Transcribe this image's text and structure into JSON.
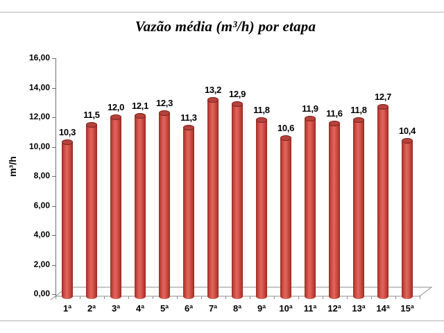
{
  "chart_data": {
    "type": "bar",
    "style": "3d-cylinder",
    "title": "Vazão média (m³/h) por etapa",
    "xlabel": "",
    "ylabel": "m³/h",
    "categories": [
      "1ª",
      "2ª",
      "3ª",
      "4ª",
      "5ª",
      "6ª",
      "7ª",
      "8ª",
      "9ª",
      "10ª",
      "11ª",
      "12ª",
      "13ª",
      "14ª",
      "15ª"
    ],
    "values": [
      10.3,
      11.5,
      12.0,
      12.1,
      12.3,
      11.3,
      13.2,
      12.9,
      11.8,
      10.6,
      11.9,
      11.6,
      11.8,
      12.7,
      10.4
    ],
    "value_labels": [
      "10,3",
      "11,5",
      "12,0",
      "12,1",
      "12,3",
      "11,3",
      "13,2",
      "12,9",
      "11,8",
      "10,6",
      "11,9",
      "11,6",
      "11,8",
      "12,7",
      "10,4"
    ],
    "y_tick_labels": [
      "0,00",
      "2,00",
      "4,00",
      "6,00",
      "8,00",
      "10,00",
      "12,00",
      "14,00",
      "16,00"
    ],
    "ylim": [
      0,
      16
    ],
    "y_tick_step": 2,
    "grid": false,
    "legend": false,
    "bar_color": "#d4554b",
    "bar_edge_color": "#8e2a23",
    "bar_top_color": "#b5423c",
    "axis_color": "#6e6e6e",
    "floor_line_color": "#8c8c8c",
    "frame_line_color": "#b3b3b3",
    "text_color": "#000000"
  }
}
